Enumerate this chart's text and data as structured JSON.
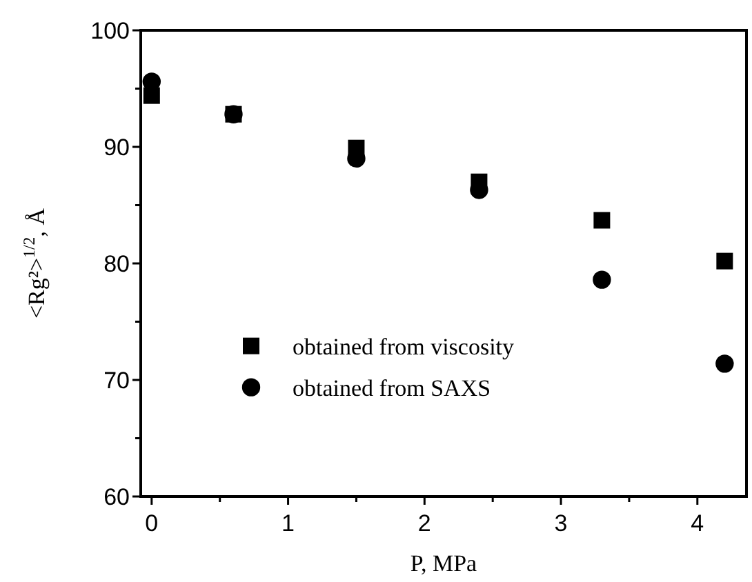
{
  "chart_data": {
    "type": "scatter",
    "xlabel": "P, MPa",
    "ylabel": "<Rg²>$^{1/2}$, Å",
    "xlim": [
      -0.08,
      4.36
    ],
    "ylim": [
      60,
      100
    ],
    "xticks": [
      0,
      {
        "value": 0.5,
        "label": null
      },
      1,
      {
        "value": 1.5,
        "label": null
      },
      2,
      {
        "value": 2.5,
        "label": null
      },
      3,
      {
        "value": 3.5,
        "label": null
      },
      4
    ],
    "yticks": [
      60,
      {
        "value": 65,
        "label": null
      },
      70,
      {
        "value": 75,
        "label": null
      },
      80,
      {
        "value": 85,
        "label": null
      },
      90,
      {
        "value": 95,
        "label": null
      },
      100
    ],
    "grid": false,
    "legend": "bottom left",
    "series": [
      {
        "name": "obtained from viscosity",
        "color": "#000000",
        "marker": "square",
        "x": [
          0,
          0.6,
          1.5,
          2.4,
          3.3,
          4.2
        ],
        "values": [
          94.4,
          92.8,
          89.9,
          87.0,
          83.7,
          80.2
        ]
      },
      {
        "name": "obtained from SAXS",
        "color": "#000000",
        "marker": "circle",
        "x": [
          0,
          0.6,
          1.5,
          2.4,
          3.3,
          4.2
        ],
        "values": [
          95.6,
          92.8,
          89.0,
          86.3,
          78.6,
          71.4
        ]
      }
    ]
  }
}
